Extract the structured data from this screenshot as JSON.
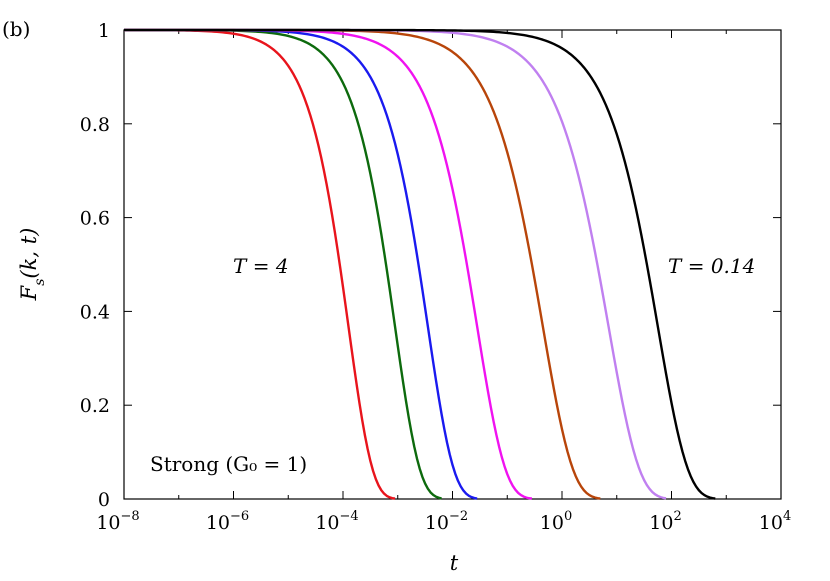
{
  "panel_label": "(b)",
  "chart_data": {
    "type": "line",
    "title": "",
    "xlabel": "t",
    "ylabel": "F_s(k,t)",
    "x_scale": "log",
    "xlim": [
      1e-08,
      10000.0
    ],
    "ylim": [
      0,
      1
    ],
    "grid": false,
    "x_ticks": [
      {
        "base": "10",
        "exp": "−8"
      },
      {
        "base": "10",
        "exp": "−6"
      },
      {
        "base": "10",
        "exp": "−4"
      },
      {
        "base": "10",
        "exp": "−2"
      },
      {
        "base": "10",
        "exp": "0"
      },
      {
        "base": "10",
        "exp": "2"
      },
      {
        "base": "10",
        "exp": "4"
      }
    ],
    "y_ticks": [
      "0",
      "0.2",
      "0.4",
      "0.6",
      "0.8",
      "1"
    ],
    "annotations": {
      "high_T": "T = 4",
      "low_T": "T = 0.14",
      "strong": "Strong (G₀ = 1)"
    },
    "series": [
      {
        "color": "#e8141c",
        "tau_log10": -3.9,
        "beta": 1.0
      },
      {
        "color": "#0d6a0d",
        "tau_log10": -3.05,
        "beta": 0.97
      },
      {
        "color": "#1a1aef",
        "tau_log10": -2.45,
        "beta": 0.93
      },
      {
        "color": "#f012f0",
        "tau_log10": -1.55,
        "beta": 0.85
      },
      {
        "color": "#b8450a",
        "tau_log10": -0.35,
        "beta": 0.8
      },
      {
        "color": "#c080f0",
        "tau_log10": 0.85,
        "beta": 0.78
      },
      {
        "color": "#000000",
        "tau_log10": 1.75,
        "beta": 0.8
      }
    ]
  }
}
